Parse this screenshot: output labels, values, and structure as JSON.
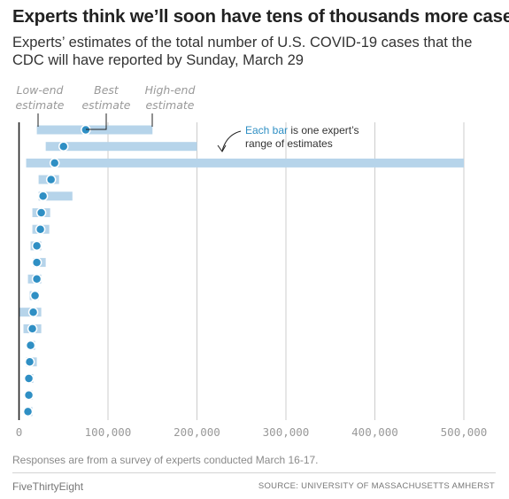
{
  "header": {
    "title": "Experts think we’ll soon have tens of thousands more cases",
    "subtitle": "Experts’ estimates of the total number of U.S. COVID-19 cases that the CDC will have reported by Sunday, March 29"
  },
  "legend": {
    "low": [
      "Low-end",
      "estimate"
    ],
    "best": [
      "Best",
      "estimate"
    ],
    "high": [
      "High-end",
      "estimate"
    ],
    "annotation_highlight": "Each bar",
    "annotation_rest_1": " is one expert’s",
    "annotation_rest_2": "range of estimates"
  },
  "footer": {
    "note": "Responses are from a survey of experts conducted March 16-17.",
    "brand": "FiveThirtyEight",
    "source": "SOURCE: UNIVERSITY OF MASSACHUSETTS AMHERST"
  },
  "colors": {
    "bar": "#b6d4ea",
    "dot": "#2f8fc4",
    "dot_stroke": "#ffffff",
    "grid": "#cccccc",
    "axis": "#222222",
    "tick_text": "#999999",
    "legend_text": "#999999",
    "highlight": "#2f8fc4"
  },
  "chart_data": {
    "type": "range_dot",
    "xlim": [
      0,
      500000
    ],
    "x_ticks": [
      0,
      100000,
      200000,
      300000,
      400000,
      500000
    ],
    "x_tick_labels": [
      "0",
      "100,000",
      "200,000",
      "300,000",
      "400,000",
      "500,000"
    ],
    "grid": true,
    "series": [
      {
        "low": 20000,
        "best": 75000,
        "high": 150000
      },
      {
        "low": 30000,
        "best": 50000,
        "high": 200000
      },
      {
        "low": 8000,
        "best": 40000,
        "high": 500000
      },
      {
        "low": 22000,
        "best": 36000,
        "high": 45000
      },
      {
        "low": 22000,
        "best": 27000,
        "high": 60000
      },
      {
        "low": 15000,
        "best": 25000,
        "high": 35000
      },
      {
        "low": 15000,
        "best": 24000,
        "high": 34000
      },
      {
        "low": 13000,
        "best": 20000,
        "high": 25000
      },
      {
        "low": 16000,
        "best": 20000,
        "high": 30000
      },
      {
        "low": 10000,
        "best": 20000,
        "high": 25000
      },
      {
        "low": 12000,
        "best": 18000,
        "high": 22000
      },
      {
        "low": 0,
        "best": 16000,
        "high": 25000
      },
      {
        "low": 5000,
        "best": 15000,
        "high": 25000
      },
      {
        "low": 10000,
        "best": 13000,
        "high": 18000
      },
      {
        "low": 8000,
        "best": 12000,
        "high": 20000
      },
      {
        "low": 8000,
        "best": 11000,
        "high": 16000
      },
      {
        "low": 8000,
        "best": 11000,
        "high": 15000
      },
      {
        "low": 7000,
        "best": 10000,
        "high": 15000
      }
    ]
  }
}
